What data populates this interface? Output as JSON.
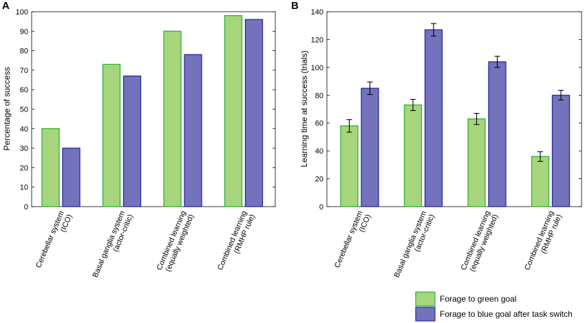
{
  "legend": [
    {
      "label": "Forage to green goal",
      "fill": "#a7d57c",
      "stroke": "#2fae3c"
    },
    {
      "label": "Forage to blue goal after task switch",
      "fill": "#7272bd",
      "stroke": "#2a2a9a"
    }
  ],
  "chart_data": [
    {
      "type": "bar",
      "panel_label": "A",
      "title": "",
      "xlabel": "",
      "ylabel": "Percentage of success",
      "ylim": [
        0,
        100
      ],
      "yticks": [
        0,
        10,
        20,
        30,
        40,
        50,
        60,
        70,
        80,
        90,
        100
      ],
      "categories": [
        [
          "Cerebellar system",
          "(ICO)"
        ],
        [
          "Basal ganglia system",
          "(actor-critic)"
        ],
        [
          "Combined learning",
          "(equally weighted)"
        ],
        [
          "Combined learning",
          "(RMHP rule)"
        ]
      ],
      "series": [
        {
          "name": "Forage to green goal",
          "values": [
            40,
            73,
            90,
            98
          ]
        },
        {
          "name": "Forage to blue goal after task switch",
          "values": [
            30,
            67,
            78,
            96
          ]
        }
      ]
    },
    {
      "type": "bar",
      "panel_label": "B",
      "title": "",
      "xlabel": "",
      "ylabel": "Learning time at success (trials)",
      "ylim": [
        0,
        140
      ],
      "yticks": [
        0,
        20,
        40,
        60,
        80,
        100,
        120,
        140
      ],
      "categories": [
        [
          "Cerebellar system",
          "(ICO)"
        ],
        [
          "Basal ganglia system",
          "(actor-critic)"
        ],
        [
          "Combined learning",
          "(equally weighted)"
        ],
        [
          "Combined learning",
          "(RMHP rule)"
        ]
      ],
      "series": [
        {
          "name": "Forage to green goal",
          "values": [
            58,
            73,
            63,
            36
          ],
          "errors": [
            4.5,
            4,
            4,
            3.5
          ]
        },
        {
          "name": "Forage to blue goal after task switch",
          "values": [
            85,
            127,
            104,
            80
          ],
          "errors": [
            4.5,
            4.5,
            4,
            3.5
          ]
        }
      ]
    }
  ]
}
